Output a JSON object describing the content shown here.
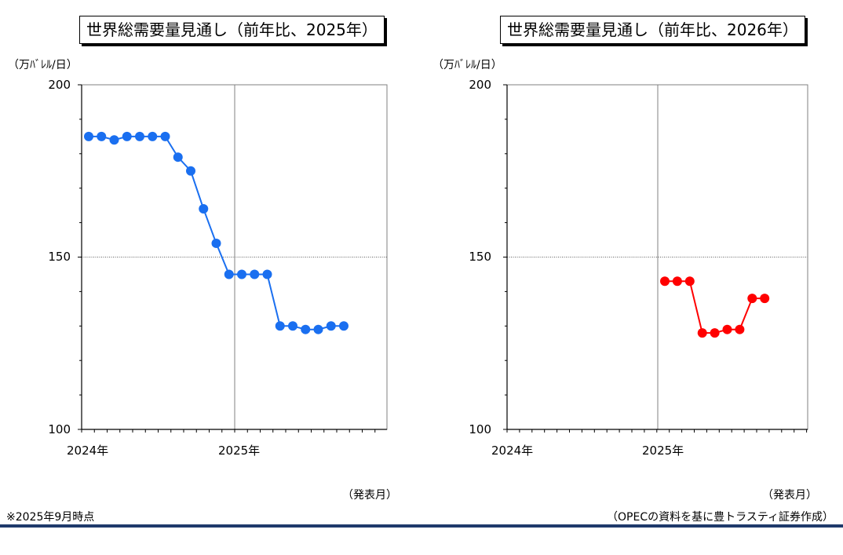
{
  "chart_data": [
    {
      "type": "line",
      "title": "世界総需要量見通し（前年比、2025年）",
      "ylabel": "（万ﾊﾞﾚﾙ/日）",
      "xlabel": "（発表月）",
      "ylim": [
        100,
        200
      ],
      "yticks": [
        "100",
        "150",
        "200"
      ],
      "xticks": [
        "2024年",
        "2025年"
      ],
      "grid": "dotted line at 150, vertical line at 2025年",
      "series": [
        {
          "color": "#1a6ff0",
          "values": [
            185,
            185,
            184,
            185,
            185,
            185,
            185,
            179,
            175,
            164,
            154,
            145,
            145,
            145,
            145,
            130,
            130,
            129,
            129,
            130,
            130
          ]
        }
      ]
    },
    {
      "type": "line",
      "title": "世界総需要量見通し（前年比、2026年）",
      "ylabel": "（万ﾊﾞﾚﾙ/日）",
      "xlabel": "（発表月）",
      "ylim": [
        100,
        200
      ],
      "yticks": [
        "100",
        "150",
        "200"
      ],
      "xticks": [
        "2024年",
        "2025年"
      ],
      "grid": "dotted line at 150, vertical line at 2025年",
      "series": [
        {
          "color": "#ff0000",
          "values": [
            143,
            143,
            143,
            128,
            128,
            129,
            129,
            138,
            138
          ]
        }
      ]
    }
  ],
  "footer": {
    "note": "※2025年9月時点",
    "source": "（OPECの資料を基に豊トラスティ証券作成）"
  }
}
